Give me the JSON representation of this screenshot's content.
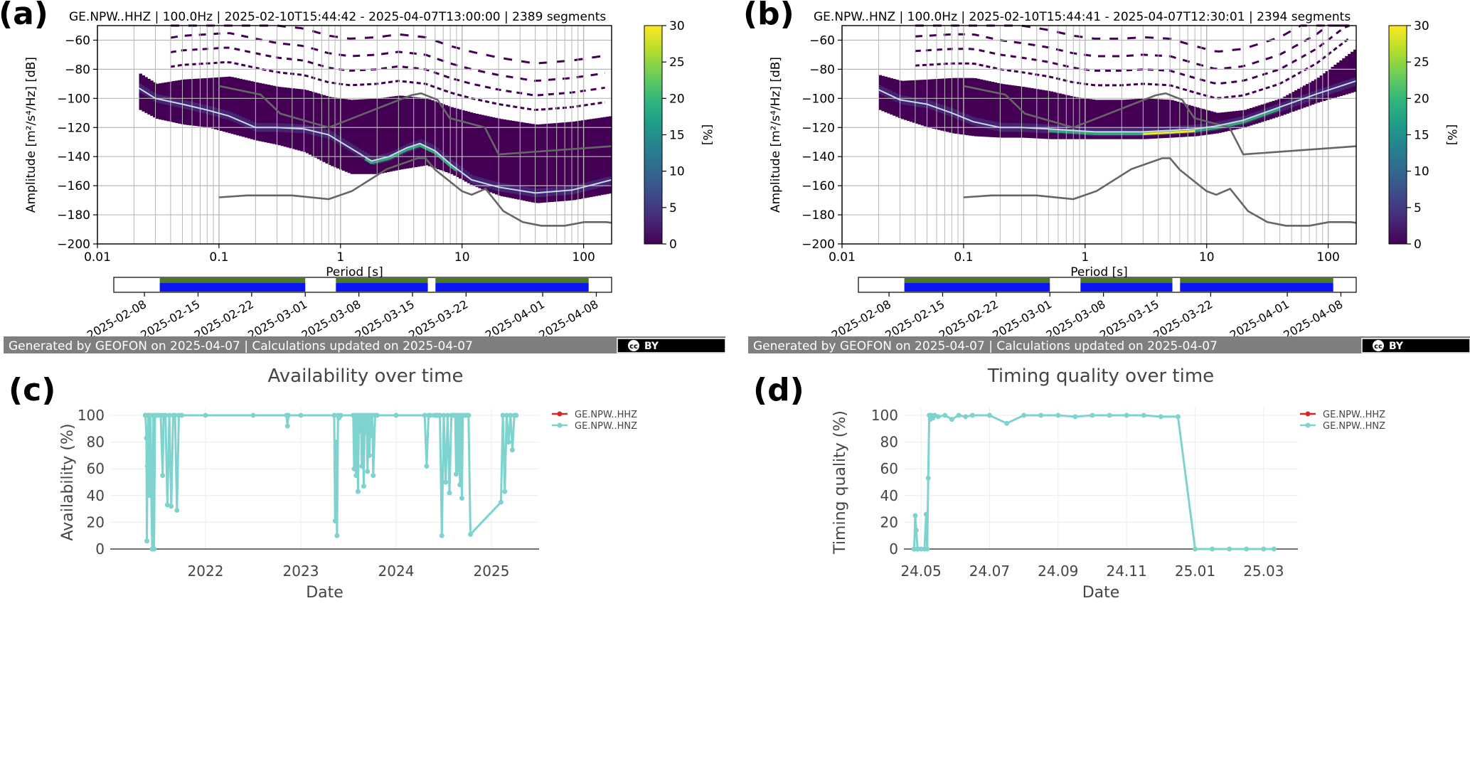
{
  "panel_labels": [
    "(a)",
    "(b)",
    "(c)",
    "(d)"
  ],
  "colors": {
    "viridis": [
      "#440154",
      "#482878",
      "#3e4a89",
      "#31688e",
      "#26828e",
      "#1f9e89",
      "#35b779",
      "#6ece58",
      "#b5de2b",
      "#fde725"
    ],
    "noise_model": "#666666",
    "mean_curve": "#c8dce8",
    "availability_green": "#4c7a1e",
    "availability_blue": "#0b16f0",
    "footer_bg": "#7f7f7f",
    "hhz_series": "#d62728",
    "hnz_series": "#7ed3cf"
  },
  "footer": {
    "text": "Generated by GEOFON on 2025-04-07 | Calculations updated on 2025-04-07",
    "license_cc": "cc",
    "license_by": "BY"
  },
  "chart_data": [
    {
      "type": "heatmap",
      "id": "a",
      "title": "GE.NPW..HHZ | 100.0Hz | 2025-02-10T15:44:42 - 2025-04-07T13:00:00 | 2389 segments",
      "xlabel": "Period [s]",
      "ylabel": "Amplitude [m²/s⁴/Hz] [dB]",
      "xscale": "log",
      "xlim": [
        0.01,
        170
      ],
      "ylim": [
        -200,
        -50
      ],
      "xticks": [
        "0.01",
        "0.1",
        "1",
        "10",
        "100"
      ],
      "yticks": [
        -200,
        -180,
        -160,
        -140,
        -120,
        -100,
        -80,
        -60
      ],
      "colorbar": {
        "label": "[%]",
        "range": [
          0,
          30
        ],
        "ticks": [
          0,
          5,
          10,
          15,
          20,
          25,
          30
        ]
      },
      "mean_curve": {
        "x": [
          0.022,
          0.03,
          0.05,
          0.08,
          0.12,
          0.2,
          0.3,
          0.5,
          0.8,
          1.2,
          1.8,
          2.5,
          3.5,
          4.5,
          6,
          8,
          12,
          20,
          40,
          80,
          170
        ],
        "y": [
          -93,
          -100,
          -104,
          -108,
          -112,
          -120,
          -120,
          -121,
          -125,
          -134,
          -143,
          -140,
          -134,
          -131,
          -136,
          -145,
          -156,
          -161,
          -165,
          -163,
          -156
        ]
      },
      "density_upper": {
        "x": [
          0.022,
          0.03,
          0.05,
          0.08,
          0.12,
          0.2,
          0.3,
          0.5,
          0.8,
          1.2,
          2,
          3,
          5,
          8,
          12,
          20,
          40,
          80,
          170
        ],
        "y": [
          -83,
          -90,
          -87,
          -86,
          -85,
          -89,
          -92,
          -94,
          -99,
          -101,
          -100,
          -98,
          -100,
          -106,
          -110,
          -114,
          -118,
          -116,
          -112
        ]
      },
      "density_lower": {
        "x": [
          0.022,
          0.03,
          0.05,
          0.08,
          0.12,
          0.2,
          0.3,
          0.5,
          0.8,
          1.2,
          2,
          3,
          5,
          8,
          12,
          20,
          40,
          80,
          170
        ],
        "y": [
          -108,
          -114,
          -118,
          -120,
          -124,
          -129,
          -132,
          -137,
          -146,
          -152,
          -152,
          -149,
          -146,
          -152,
          -160,
          -167,
          -172,
          -170,
          -165
        ]
      },
      "nhnm": {
        "x": [
          0.1,
          0.22,
          0.32,
          0.8,
          3.8,
          4.6,
          6.3,
          7.9,
          15.4,
          20,
          354
        ],
        "y": [
          -91.5,
          -97.4,
          -110.5,
          -120,
          -97.9,
          -96.5,
          -101,
          -113.5,
          -120,
          -138.5,
          -126
        ]
      },
      "nlnm": {
        "x": [
          0.1,
          0.17,
          0.4,
          0.8,
          1.24,
          2.4,
          4.3,
          5,
          6,
          10,
          12,
          15.6,
          21.9,
          31.6,
          45,
          70,
          101,
          154,
          170
        ],
        "y": [
          -168,
          -166.7,
          -166.7,
          -169.2,
          -163.7,
          -148.6,
          -141.1,
          -141.1,
          -149,
          -163.8,
          -166.2,
          -162.1,
          -177.5,
          -185,
          -187.5,
          -187.5,
          -185,
          -185,
          -185.5
        ]
      },
      "timeline": {
        "xticks": [
          "2025-02-08",
          "2025-02-15",
          "2025-02-22",
          "2025-03-01",
          "2025-03-08",
          "2025-03-15",
          "2025-03-22",
          "2025-04-01",
          "2025-04-08"
        ],
        "start": "2025-02-04",
        "end": "2025-04-10",
        "segments": [
          [
            "2025-02-10",
            "2025-03-01"
          ],
          [
            "2025-03-05",
            "2025-03-17"
          ],
          [
            "2025-03-18",
            "2025-04-07"
          ]
        ]
      }
    },
    {
      "type": "heatmap",
      "id": "b",
      "title": "GE.NPW..HNZ | 100.0Hz | 2025-02-10T15:44:41 - 2025-04-07T12:30:01 | 2394 segments",
      "xlabel": "Period [s]",
      "ylabel": "Amplitude [m²/s⁴/Hz] [dB]",
      "xscale": "log",
      "xlim": [
        0.01,
        170
      ],
      "ylim": [
        -200,
        -50
      ],
      "xticks": [
        "0.01",
        "0.1",
        "1",
        "10",
        "100"
      ],
      "yticks": [
        -200,
        -180,
        -160,
        -140,
        -120,
        -100,
        -80,
        -60
      ],
      "colorbar": {
        "label": "[%]",
        "range": [
          0,
          30
        ],
        "ticks": [
          0,
          5,
          10,
          15,
          20,
          25,
          30
        ]
      },
      "mean_curve": {
        "x": [
          0.02,
          0.03,
          0.05,
          0.08,
          0.12,
          0.2,
          0.3,
          0.5,
          0.8,
          1.2,
          2,
          3,
          5,
          8,
          12,
          20,
          40,
          80,
          170
        ],
        "y": [
          -94,
          -101,
          -104,
          -110,
          -116,
          -120,
          -120,
          -121,
          -122,
          -123,
          -123,
          -123,
          -122,
          -121,
          -119,
          -115,
          -106,
          -97,
          -88
        ]
      },
      "density_upper": {
        "x": [
          0.02,
          0.03,
          0.05,
          0.08,
          0.12,
          0.2,
          0.3,
          0.5,
          0.8,
          1.2,
          2,
          3,
          5,
          8,
          12,
          20,
          40,
          80,
          170
        ],
        "y": [
          -84,
          -88,
          -87,
          -86,
          -86,
          -90,
          -92,
          -95,
          -99,
          -101,
          -101,
          -100,
          -101,
          -106,
          -110,
          -108,
          -100,
          -86,
          -65
        ]
      },
      "density_lower": {
        "x": [
          0.02,
          0.03,
          0.05,
          0.08,
          0.12,
          0.2,
          0.3,
          0.5,
          0.8,
          1.2,
          2,
          3,
          5,
          8,
          12,
          20,
          40,
          80,
          170
        ],
        "y": [
          -108,
          -114,
          -120,
          -124,
          -126,
          -127,
          -127,
          -128,
          -128,
          -128,
          -128,
          -128,
          -127,
          -126,
          -124,
          -120,
          -112,
          -103,
          -95
        ]
      },
      "nhnm": {
        "x": [
          0.1,
          0.22,
          0.32,
          0.8,
          3.8,
          4.6,
          6.3,
          7.9,
          15.4,
          20,
          354
        ],
        "y": [
          -91.5,
          -97.4,
          -110.5,
          -120,
          -97.9,
          -96.5,
          -101,
          -113.5,
          -120,
          -138.5,
          -126
        ]
      },
      "nlnm": {
        "x": [
          0.1,
          0.17,
          0.4,
          0.8,
          1.24,
          2.4,
          4.3,
          5,
          6,
          10,
          12,
          15.6,
          21.9,
          31.6,
          45,
          70,
          101,
          154,
          170
        ],
        "y": [
          -168,
          -166.7,
          -166.7,
          -169.2,
          -163.7,
          -148.6,
          -141.1,
          -141.1,
          -149,
          -163.8,
          -166.2,
          -162.1,
          -177.5,
          -185,
          -187.5,
          -187.5,
          -185,
          -185,
          -185.5
        ]
      },
      "timeline": {
        "xticks": [
          "2025-02-08",
          "2025-02-15",
          "2025-02-22",
          "2025-03-01",
          "2025-03-08",
          "2025-03-15",
          "2025-03-22",
          "2025-04-01",
          "2025-04-08"
        ],
        "start": "2025-02-04",
        "end": "2025-04-10",
        "segments": [
          [
            "2025-02-10",
            "2025-03-01"
          ],
          [
            "2025-03-05",
            "2025-03-17"
          ],
          [
            "2025-03-18",
            "2025-04-07"
          ]
        ]
      }
    },
    {
      "type": "line",
      "id": "c",
      "title": "Availability over time",
      "xlabel": "Date",
      "ylabel": "Availability (%)",
      "xlim": [
        2021.0,
        2025.5
      ],
      "ylim": [
        0,
        100
      ],
      "xticks": [
        "2022",
        "2023",
        "2024",
        "2025"
      ],
      "yticks": [
        0,
        20,
        40,
        60,
        80,
        100
      ],
      "legend_position": "top-right",
      "series": [
        {
          "name": "GE.NPW..HHZ",
          "x": [
            2021.37,
            2021.4
          ],
          "y": [
            100,
            100
          ]
        },
        {
          "name": "GE.NPW..HNZ",
          "x": [
            2021.37,
            2021.38,
            2021.385,
            2021.39,
            2021.4,
            2021.41,
            2021.42,
            2021.43,
            2021.44,
            2021.45,
            2021.46,
            2021.47,
            2021.48,
            2021.5,
            2021.53,
            2021.55,
            2021.56,
            2021.58,
            2021.6,
            2021.62,
            2021.64,
            2021.66,
            2021.68,
            2021.7,
            2021.72,
            2021.75,
            2022.0,
            2022.5,
            2022.85,
            2022.86,
            2022.87,
            2023.0,
            2023.35,
            2023.36,
            2023.37,
            2023.38,
            2023.39,
            2023.4,
            2023.42,
            2023.55,
            2023.56,
            2023.57,
            2023.58,
            2023.59,
            2023.6,
            2023.61,
            2023.62,
            2023.63,
            2023.64,
            2023.65,
            2023.66,
            2023.67,
            2023.68,
            2023.69,
            2023.7,
            2023.71,
            2023.72,
            2023.73,
            2023.74,
            2023.75,
            2023.76,
            2023.78,
            2023.8,
            2024.0,
            2024.3,
            2024.32,
            2024.34,
            2024.36,
            2024.4,
            2024.42,
            2024.44,
            2024.46,
            2024.48,
            2024.5,
            2024.52,
            2024.54,
            2024.56,
            2024.58,
            2024.6,
            2024.62,
            2024.63,
            2024.64,
            2024.65,
            2024.66,
            2024.67,
            2024.68,
            2024.69,
            2024.7,
            2024.72,
            2024.74,
            2024.76,
            2024.78,
            2025.1,
            2025.12,
            2025.14,
            2025.16,
            2025.18,
            2025.2,
            2025.22,
            2025.24,
            2025.26
          ],
          "y": [
            100,
            83,
            6,
            62,
            100,
            40,
            100,
            45,
            0,
            100,
            0,
            100,
            100,
            100,
            100,
            55,
            100,
            100,
            33,
            100,
            32,
            100,
            100,
            29,
            100,
            100,
            100,
            100,
            100,
            92,
            100,
            100,
            100,
            21,
            80,
            10,
            100,
            98,
            100,
            100,
            60,
            100,
            55,
            100,
            43,
            100,
            88,
            100,
            62,
            100,
            47,
            100,
            87,
            100,
            58,
            100,
            70,
            100,
            85,
            100,
            55,
            100,
            100,
            100,
            100,
            62,
            100,
            100,
            100,
            100,
            100,
            100,
            10,
            100,
            50,
            100,
            42,
            100,
            100,
            100,
            56,
            100,
            59,
            100,
            48,
            100,
            38,
            100,
            100,
            100,
            100,
            11,
            35,
            100,
            43,
            100,
            80,
            100,
            74,
            100,
            100
          ]
        }
      ]
    },
    {
      "type": "line",
      "id": "d",
      "title": "Timing quality over time",
      "xlabel": "Date",
      "ylabel": "Timing quality (%)",
      "xlim": [
        24.0,
        25.15
      ],
      "ylim": [
        0,
        100
      ],
      "xticks": [
        "24.05",
        "24.07",
        "24.09",
        "24.11",
        "25.01",
        "25.03"
      ],
      "yticks": [
        0,
        20,
        40,
        60,
        80,
        100
      ],
      "legend_position": "top-right",
      "series": [
        {
          "name": "GE.NPW..HHZ",
          "x": [
            24.03,
            24.04
          ],
          "y": [
            0,
            0
          ]
        },
        {
          "name": "GE.NPW..HNZ",
          "x": [
            24.03,
            24.033,
            24.036,
            24.04,
            24.05,
            24.06,
            24.065,
            24.068,
            24.071,
            24.074,
            24.077,
            24.08,
            24.085,
            24.09,
            24.1,
            24.12,
            24.14,
            24.16,
            24.18,
            24.2,
            24.25,
            24.3,
            24.35,
            24.4,
            24.45,
            24.5,
            24.55,
            24.6,
            24.65,
            24.7,
            24.75,
            24.8,
            24.85,
            24.9,
            24.95,
            25.0,
            25.05,
            25.08
          ],
          "y": [
            0,
            25,
            14,
            0,
            0,
            0,
            26,
            0,
            53,
            100,
            97,
            100,
            98,
            100,
            99,
            100,
            97,
            100,
            99,
            100,
            100,
            94,
            100,
            100,
            100,
            99,
            100,
            100,
            100,
            100,
            99,
            99,
            0,
            0,
            0,
            0,
            0,
            0
          ]
        }
      ]
    }
  ]
}
